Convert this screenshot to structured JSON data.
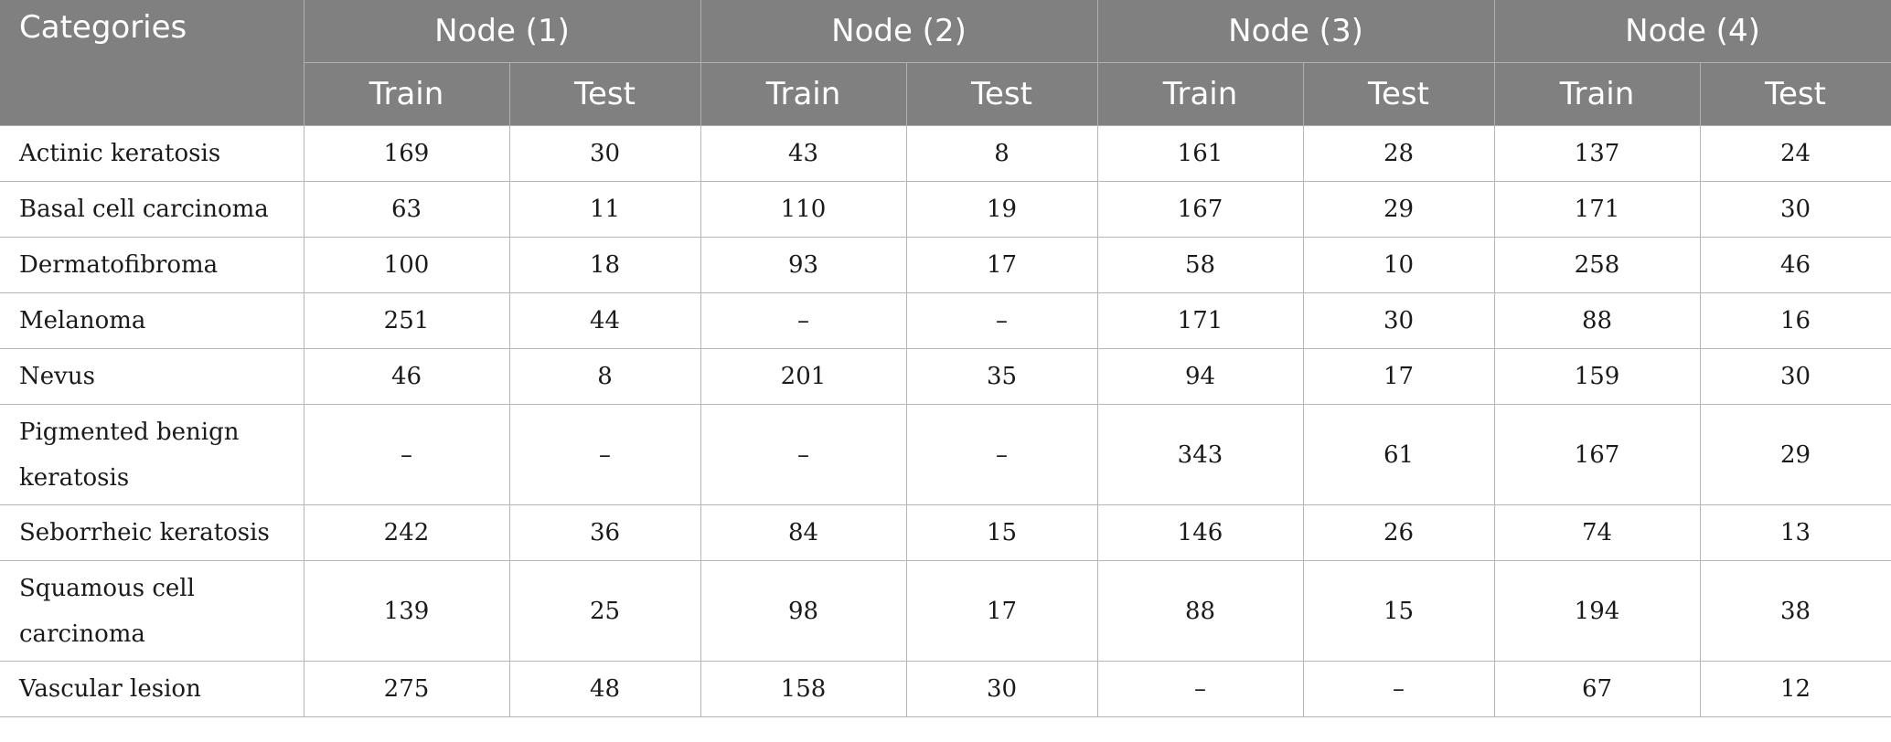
{
  "table": {
    "category_header": "Categories",
    "groups": [
      "Node (1)",
      "Node (2)",
      "Node (3)",
      "Node (4)"
    ],
    "subheaders": [
      "Train",
      "Test",
      "Train",
      "Test",
      "Train",
      "Test",
      "Train",
      "Test"
    ],
    "rows": [
      {
        "category": "Actinic keratosis",
        "values": [
          "169",
          "30",
          "43",
          "8",
          "161",
          "28",
          "137",
          "24"
        ]
      },
      {
        "category": "Basal cell carcinoma",
        "values": [
          "63",
          "11",
          "110",
          "19",
          "167",
          "29",
          "171",
          "30"
        ]
      },
      {
        "category": "Dermatofibroma",
        "values": [
          "100",
          "18",
          "93",
          "17",
          "58",
          "10",
          "258",
          "46"
        ]
      },
      {
        "category": "Melanoma",
        "values": [
          "251",
          "44",
          "–",
          "–",
          "171",
          "30",
          "88",
          "16"
        ]
      },
      {
        "category": "Nevus",
        "values": [
          "46",
          "8",
          "201",
          "35",
          "94",
          "17",
          "159",
          "30"
        ]
      },
      {
        "category": "Pigmented benign keratosis",
        "values": [
          "–",
          "–",
          "–",
          "–",
          "343",
          "61",
          "167",
          "29"
        ]
      },
      {
        "category": "Seborrheic keratosis",
        "values": [
          "242",
          "36",
          "84",
          "15",
          "146",
          "26",
          "74",
          "13"
        ]
      },
      {
        "category": "Squamous cell carcinoma",
        "values": [
          "139",
          "25",
          "98",
          "17",
          "88",
          "15",
          "194",
          "38"
        ]
      },
      {
        "category": "Vascular lesion",
        "values": [
          "275",
          "48",
          "158",
          "30",
          "–",
          "–",
          "67",
          "12"
        ]
      }
    ]
  }
}
